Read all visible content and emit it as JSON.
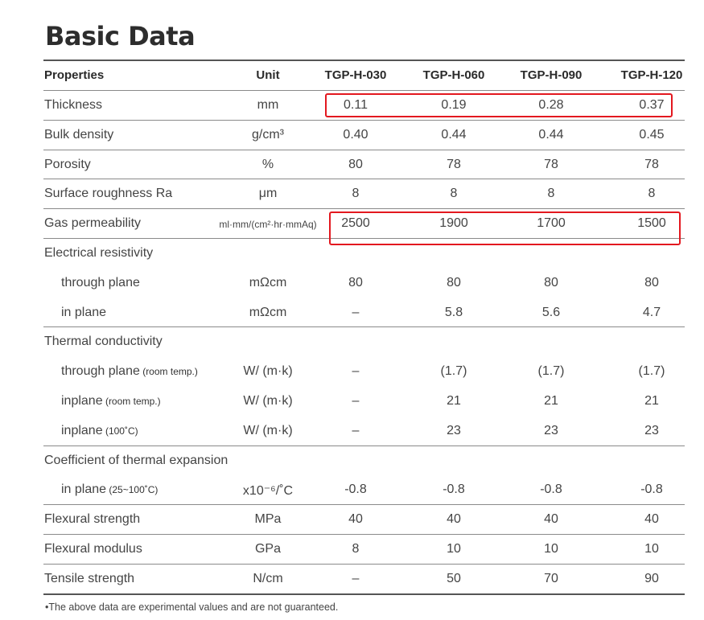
{
  "title": "Basic Data",
  "table": {
    "headers": [
      "Properties",
      "Unit",
      "TGP-H-030",
      "TGP-H-060",
      "TGP-H-090",
      "TGP-H-120"
    ],
    "rows": [
      {
        "property": "Thickness",
        "unit": "mm",
        "values": [
          "0.11",
          "0.19",
          "0.28",
          "0.37"
        ],
        "highlighted": true
      },
      {
        "property": "Bulk density",
        "unit": "g/cm³",
        "values": [
          "0.40",
          "0.44",
          "0.44",
          "0.45"
        ]
      },
      {
        "property": "Porosity",
        "unit": "%",
        "values": [
          "80",
          "78",
          "78",
          "78"
        ]
      },
      {
        "property": "Surface roughness Ra",
        "unit": "μm",
        "values": [
          "8",
          "8",
          "8",
          "8"
        ]
      },
      {
        "property": "Gas permeability",
        "unit": "ml·mm/(cm²·hr·mmAq)",
        "values": [
          "2500",
          "1900",
          "1700",
          "1500"
        ],
        "highlighted": true
      },
      {
        "property": "Electrical resistivity",
        "unit": "",
        "values": [
          "",
          "",
          "",
          ""
        ]
      },
      {
        "property": "through plane",
        "unit": "mΩcm",
        "values": [
          "80",
          "80",
          "80",
          "80"
        ],
        "sub": true
      },
      {
        "property": "in plane",
        "unit": "mΩcm",
        "values": [
          "–",
          "5.8",
          "5.6",
          "4.7"
        ],
        "sub": true
      },
      {
        "property": "Thermal conductivity",
        "unit": "",
        "values": [
          "",
          "",
          "",
          ""
        ]
      },
      {
        "property": "through plane",
        "qualifier": "(room temp.)",
        "unit": "W/ (m·k)",
        "values": [
          "–",
          "(1.7)",
          "(1.7)",
          "(1.7)"
        ],
        "sub": true
      },
      {
        "property": "inplane",
        "qualifier": "(room temp.)",
        "unit": "W/ (m·k)",
        "values": [
          "–",
          "21",
          "21",
          "21"
        ],
        "sub": true
      },
      {
        "property": "inplane",
        "qualifier": "(100˚C)",
        "unit": "W/ (m·k)",
        "values": [
          "–",
          "23",
          "23",
          "23"
        ],
        "sub": true
      },
      {
        "property": "Coefficient of thermal expansion",
        "unit": "",
        "values": [
          "",
          "",
          "",
          ""
        ]
      },
      {
        "property": "in plane",
        "qualifier": "(25~100˚C)",
        "unit": "x10⁻⁶/˚C",
        "values": [
          "-0.8",
          "-0.8",
          "-0.8",
          "-0.8"
        ],
        "sub": true
      },
      {
        "property": "Flexural strength",
        "unit": "MPa",
        "values": [
          "40",
          "40",
          "40",
          "40"
        ]
      },
      {
        "property": "Flexural modulus",
        "unit": "GPa",
        "values": [
          "8",
          "10",
          "10",
          "10"
        ]
      },
      {
        "property": "Tensile strength",
        "unit": "N/cm",
        "values": [
          "–",
          "50",
          "70",
          "90"
        ]
      }
    ]
  },
  "footnote": "•The above data are experimental values and are not guaranteed.",
  "colors": {
    "highlight_border": "#e3181f",
    "rule": "#8a8a8a"
  }
}
